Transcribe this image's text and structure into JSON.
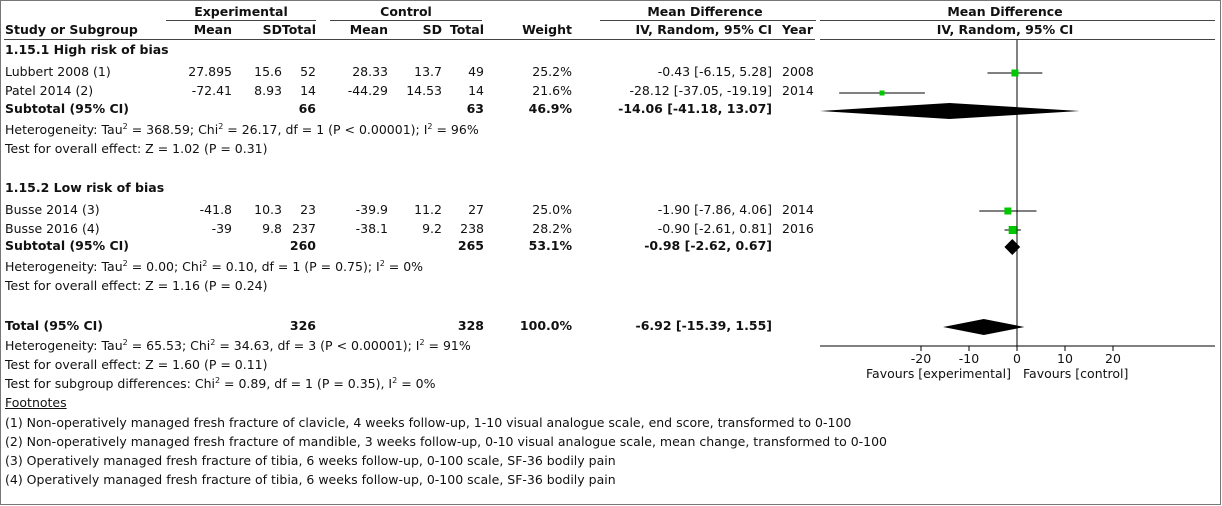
{
  "headers": {
    "experimental": "Experimental",
    "control": "Control",
    "md_left": "Mean Difference",
    "md_right": "Mean Difference",
    "study": "Study or Subgroup",
    "mean1": "Mean",
    "sd1": "SD",
    "total1": "Total",
    "mean2": "Mean",
    "sd2": "SD",
    "total2": "Total",
    "weight": "Weight",
    "method_left": "IV, Random, 95% CI",
    "year": "Year",
    "method_right": "IV, Random, 95% CI"
  },
  "groups": [
    {
      "title": "1.15.1 High risk of bias",
      "studies": [
        {
          "name": "Lubbert 2008 (1)",
          "mean1": "27.895",
          "sd1": "15.6",
          "total1": "52",
          "mean2": "28.33",
          "sd2": "13.7",
          "total2": "49",
          "weight": "25.2%",
          "ci": "-0.43 [-6.15, 5.28]",
          "year": "2008"
        },
        {
          "name": "Patel 2014 (2)",
          "mean1": "-72.41",
          "sd1": "8.93",
          "total1": "14",
          "mean2": "-44.29",
          "sd2": "14.53",
          "total2": "14",
          "weight": "21.6%",
          "ci": "-28.12 [-37.05, -19.19]",
          "year": "2014"
        }
      ],
      "subtotal": {
        "label": "Subtotal (95% CI)",
        "total1": "66",
        "total2": "63",
        "weight": "46.9%",
        "ci": "-14.06 [-41.18, 13.07]"
      },
      "heterogeneity": {
        "prefix": "Heterogeneity: Tau",
        "mid1": " = 368.59; Chi",
        "mid2": " = 26.17, df = 1 (P < 0.00001); I",
        "tail": " = 96%"
      },
      "overall": "Test for overall effect: Z = 1.02 (P = 0.31)"
    },
    {
      "title": "1.15.2 Low risk of bias",
      "studies": [
        {
          "name": "Busse 2014 (3)",
          "mean1": "-41.8",
          "sd1": "10.3",
          "total1": "23",
          "mean2": "-39.9",
          "sd2": "11.2",
          "total2": "27",
          "weight": "25.0%",
          "ci": "-1.90 [-7.86, 4.06]",
          "year": "2014"
        },
        {
          "name": "Busse 2016 (4)",
          "mean1": "-39",
          "sd1": "9.8",
          "total1": "237",
          "mean2": "-38.1",
          "sd2": "9.2",
          "total2": "238",
          "weight": "28.2%",
          "ci": "-0.90 [-2.61, 0.81]",
          "year": "2016"
        }
      ],
      "subtotal": {
        "label": "Subtotal (95% CI)",
        "total1": "260",
        "total2": "265",
        "weight": "53.1%",
        "ci": "-0.98 [-2.62, 0.67]"
      },
      "heterogeneity": {
        "prefix": "Heterogeneity: Tau",
        "mid1": " = 0.00; Chi",
        "mid2": " = 0.10, df = 1 (P = 0.75); I",
        "tail": " = 0%"
      },
      "overall": "Test for overall effect: Z = 1.16 (P = 0.24)"
    }
  ],
  "total": {
    "label": "Total (95% CI)",
    "total1": "326",
    "total2": "328",
    "weight": "100.0%",
    "ci": "-6.92 [-15.39, 1.55]"
  },
  "total_heterogeneity": {
    "prefix": "Heterogeneity: Tau",
    "mid1": " = 65.53; Chi",
    "mid2": " = 34.63, df = 3 (P < 0.00001); I",
    "tail": " = 91%"
  },
  "total_overall": "Test for overall effect: Z = 1.60 (P = 0.11)",
  "subgroup_diff": {
    "prefix": "Test for subgroup differences: Chi",
    "mid": " = 0.89, df = 1 (P = 0.35), I",
    "tail": " = 0%"
  },
  "footnotes_title": "Footnotes",
  "footnotes": [
    "(1) Non-operatively managed fresh fracture of clavicle, 4 weeks follow-up, 1-10 visual analogue scale, end score, transformed to 0-100",
    "(2) Non-operatively managed fresh fracture of mandible, 3 weeks follow-up, 0-10 visual analogue scale, mean change, transformed to 0-100",
    "(3) Operatively managed fresh fracture of tibia, 6 weeks follow-up, 0-100 scale, SF-36 bodily pain",
    "(4) Operatively managed fresh fracture of tibia, 6 weeks follow-up, 0-100 scale, SF-36 bodily pain"
  ],
  "sup2": "2",
  "chart_data": {
    "type": "scatter",
    "xlim": [
      -25,
      25
    ],
    "ticks": [
      -20,
      -10,
      0,
      10,
      20
    ],
    "tick_labels": [
      "-20",
      "-10",
      "0",
      "10",
      "20"
    ],
    "favours_left": "Favours [experimental]",
    "favours_right": "Favours [control]",
    "studies": [
      {
        "name": "Lubbert 2008 (1)",
        "est": -0.43,
        "lo": -6.15,
        "hi": 5.28
      },
      {
        "name": "Patel 2014 (2)",
        "est": -28.12,
        "lo": -37.05,
        "hi": -19.19
      },
      {
        "name": "Busse 2014 (3)",
        "est": -1.9,
        "lo": -7.86,
        "hi": 4.06
      },
      {
        "name": "Busse 2016 (4)",
        "est": -0.9,
        "lo": -2.61,
        "hi": 0.81
      }
    ],
    "diamonds": [
      {
        "name": "Subtotal 1.15.1",
        "est": -14.06,
        "lo": -41.18,
        "hi": 13.07
      },
      {
        "name": "Subtotal 1.15.2",
        "est": -0.98,
        "lo": -2.62,
        "hi": 0.67
      },
      {
        "name": "Total",
        "est": -6.92,
        "lo": -15.39,
        "hi": 1.55
      }
    ],
    "marker_color": "#00c800",
    "diamond_color": "#000000"
  }
}
